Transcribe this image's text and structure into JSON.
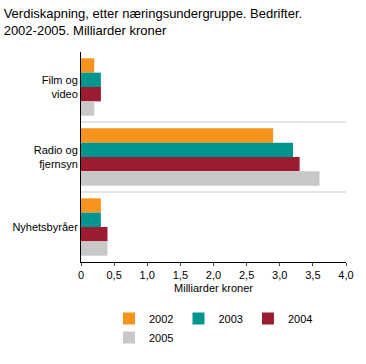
{
  "chart_data": {
    "type": "bar",
    "orientation": "horizontal",
    "title": "Verdiskapning, etter næringsundergruppe. Bedrifter. 2002-2005. Milliarder kroner",
    "x_label": "Milliarder kroner",
    "categories": [
      "Film og video",
      "Radio og fjernsyn",
      "Nyhetsbyråer"
    ],
    "series": [
      {
        "name": "2002",
        "color": "#f7941d",
        "values": [
          0.2,
          2.9,
          0.3
        ]
      },
      {
        "name": "2003",
        "color": "#00968f",
        "values": [
          0.3,
          3.2,
          0.3
        ]
      },
      {
        "name": "2004",
        "color": "#9b1b30",
        "values": [
          0.3,
          3.3,
          0.4
        ]
      },
      {
        "name": "2005",
        "color": "#c8c8c8",
        "values": [
          0.2,
          3.6,
          0.4
        ]
      }
    ],
    "xlim": [
      0,
      4
    ],
    "xticks": [
      0,
      {
        "value": 0.5,
        "label": "0,5"
      },
      {
        "value": 1,
        "label": "1,0"
      },
      {
        "value": 1.5,
        "label": "1,5"
      },
      {
        "value": 2,
        "label": "2,0"
      },
      {
        "value": 2.5,
        "label": "2,5"
      },
      {
        "value": 3,
        "label": "3,0"
      },
      {
        "value": 3.5,
        "label": "3,5"
      },
      {
        "value": 4,
        "label": "4,0"
      }
    ],
    "grid": false,
    "legend": "bottom"
  }
}
